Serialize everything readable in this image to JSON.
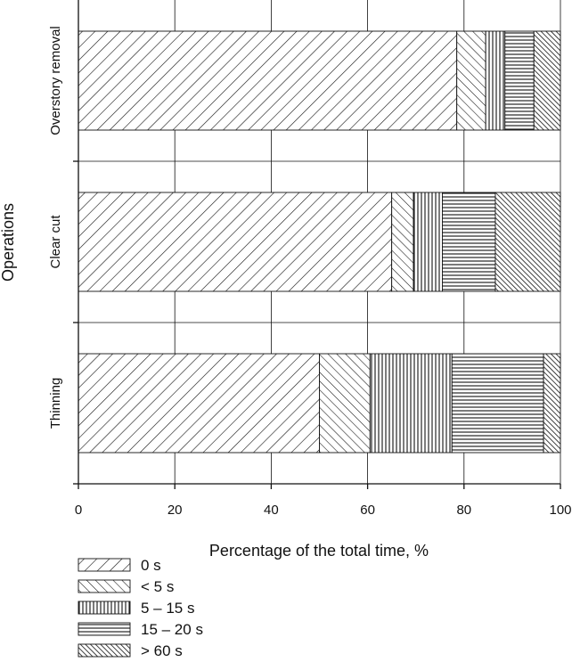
{
  "chart_data": {
    "type": "bar",
    "orientation": "horizontal",
    "stacked": true,
    "title": "",
    "xlabel": "Percentage of the total time, %",
    "ylabel": "Operations",
    "xlim": [
      0,
      100
    ],
    "xticks": [
      0,
      20,
      40,
      60,
      80,
      100
    ],
    "grid": true,
    "legend_position": "bottom-left",
    "categories": [
      "Overstory removal",
      "Clear cut",
      "Thinning"
    ],
    "series": [
      {
        "name": "0 s",
        "pattern": "diag-right",
        "values": [
          78.5,
          65,
          50
        ]
      },
      {
        "name": "< 5 s",
        "pattern": "diag-left",
        "values": [
          6,
          4.5,
          10.5
        ]
      },
      {
        "name": "5 – 15 s",
        "pattern": "vertical-lines",
        "values": [
          4,
          6,
          17
        ]
      },
      {
        "name": "15 – 20 s",
        "pattern": "horizontal-lines",
        "values": [
          6,
          11,
          19
        ]
      },
      {
        "name": "> 60 s",
        "pattern": "dense-diag-left",
        "values": [
          5.5,
          13.5,
          3.5
        ]
      }
    ]
  }
}
